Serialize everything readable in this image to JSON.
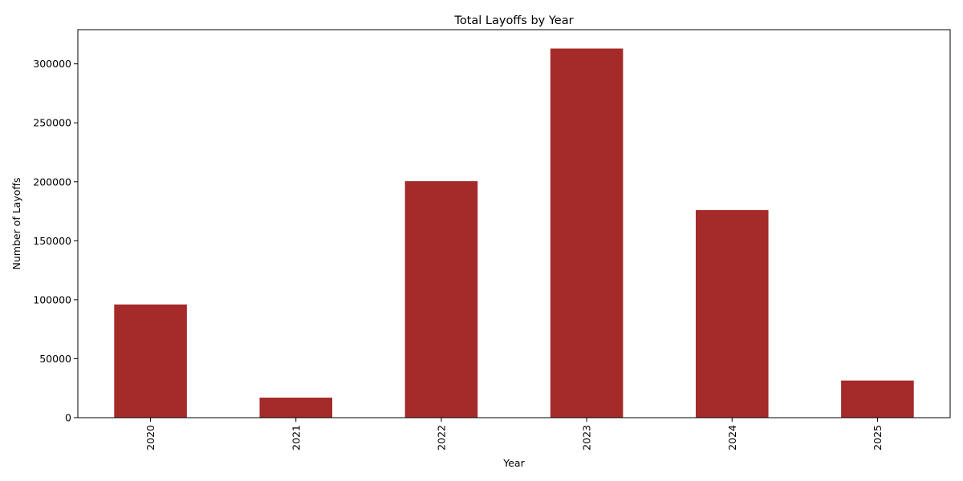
{
  "chart_data": {
    "type": "bar",
    "title": "Total Layoffs by Year",
    "xlabel": "Year",
    "ylabel": "Number of Layoffs",
    "categories": [
      "2020",
      "2021",
      "2022",
      "2023",
      "2024",
      "2025"
    ],
    "values": [
      96000,
      17000,
      200500,
      313000,
      176000,
      31500
    ],
    "ylim": [
      0,
      329000
    ],
    "yticks": [
      0,
      50000,
      100000,
      150000,
      200000,
      250000,
      300000
    ],
    "ytick_labels": [
      "0",
      "50000",
      "100000",
      "150000",
      "200000",
      "250000",
      "300000"
    ],
    "bar_color": "#a52a2a",
    "grid": false,
    "legend": "none"
  }
}
